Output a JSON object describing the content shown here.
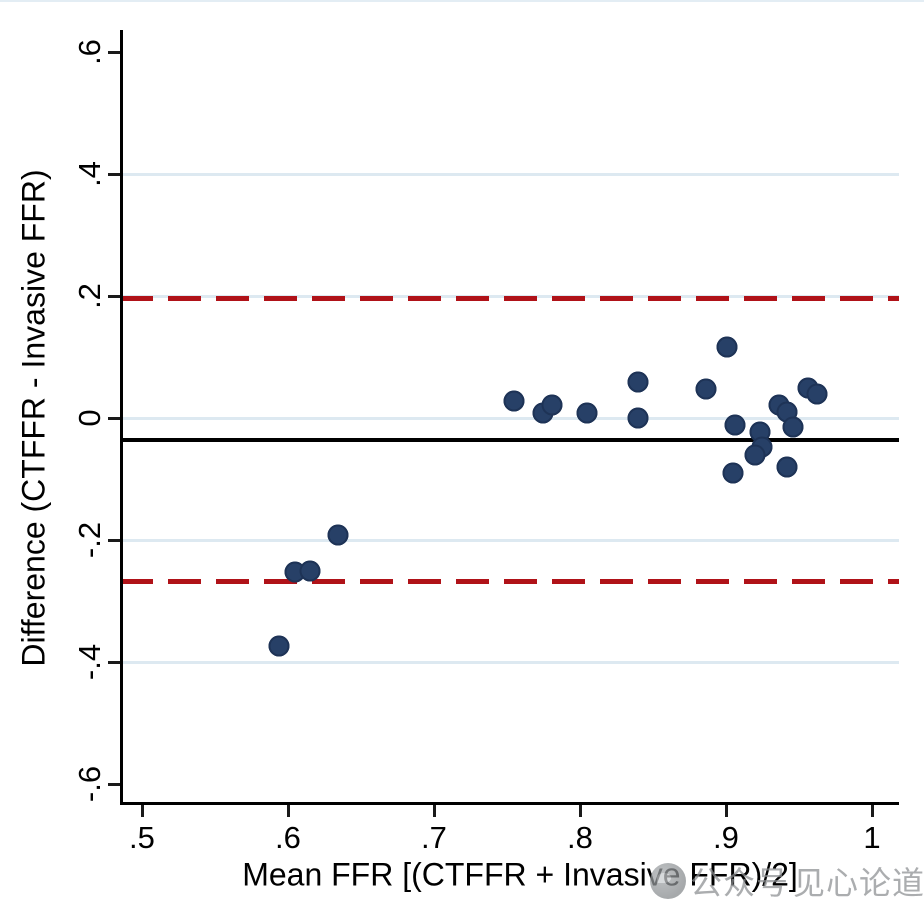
{
  "figure": {
    "watermark": {
      "icon": "wechat-logo-icon",
      "text_prefix": "公众号",
      "text_name": "见心论道"
    }
  },
  "chart_data": {
    "type": "scatter",
    "subtype": "bland-altman",
    "title": "",
    "xlabel": "Mean FFR [(CTFFR + Invasive FFR)/2]",
    "ylabel": "Difference (CTFFR - Invasive FFR)",
    "xlim": [
      0.485,
      1.0185
    ],
    "ylim": [
      -0.634,
      0.636
    ],
    "grid": "horizontal-only",
    "legend": "none",
    "x_ticks": [
      {
        "value": 0.5,
        "label": ".5"
      },
      {
        "value": 0.6,
        "label": ".6"
      },
      {
        "value": 0.7,
        "label": ".7"
      },
      {
        "value": 0.8,
        "label": ".8"
      },
      {
        "value": 0.9,
        "label": ".9"
      },
      {
        "value": 1.0,
        "label": "1"
      }
    ],
    "y_ticks": [
      {
        "value": 0.6,
        "label": ".6"
      },
      {
        "value": 0.4,
        "label": ".4"
      },
      {
        "value": 0.2,
        "label": ".2"
      },
      {
        "value": 0.0,
        "label": "0"
      },
      {
        "value": -0.2,
        "label": "-.2"
      },
      {
        "value": -0.4,
        "label": "-.4"
      },
      {
        "value": -0.6,
        "label": "-.6"
      }
    ],
    "gridline_values": [
      0.4,
      0.2,
      0.0,
      -0.2,
      -0.4
    ],
    "points": [
      {
        "mean": 0.594,
        "diff": -0.374
      },
      {
        "mean": 0.605,
        "diff": -0.252
      },
      {
        "mean": 0.615,
        "diff": -0.251
      },
      {
        "mean": 0.634,
        "diff": -0.192
      },
      {
        "mean": 0.755,
        "diff": 0.028
      },
      {
        "mean": 0.775,
        "diff": 0.008
      },
      {
        "mean": 0.781,
        "diff": 0.021
      },
      {
        "mean": 0.805,
        "diff": 0.008
      },
      {
        "mean": 0.84,
        "diff": 0.059
      },
      {
        "mean": 0.84,
        "diff": 0.0
      },
      {
        "mean": 0.886,
        "diff": 0.048
      },
      {
        "mean": 0.901,
        "diff": 0.116
      },
      {
        "mean": 0.906,
        "diff": -0.011
      },
      {
        "mean": 0.905,
        "diff": -0.09
      },
      {
        "mean": 0.923,
        "diff": -0.023
      },
      {
        "mean": 0.925,
        "diff": -0.048
      },
      {
        "mean": 0.92,
        "diff": -0.061
      },
      {
        "mean": 0.936,
        "diff": 0.021
      },
      {
        "mean": 0.942,
        "diff": 0.01
      },
      {
        "mean": 0.946,
        "diff": -0.015
      },
      {
        "mean": 0.942,
        "diff": -0.08
      },
      {
        "mean": 0.956,
        "diff": 0.049
      },
      {
        "mean": 0.962,
        "diff": 0.039
      }
    ],
    "reference_lines": {
      "mean_difference": {
        "value": -0.036,
        "style": "solid",
        "color": "#000000"
      },
      "upper_loa": {
        "value": 0.197,
        "style": "dashed",
        "color": "#b01218"
      },
      "lower_loa": {
        "value": -0.267,
        "style": "dashed",
        "color": "#b01218"
      }
    },
    "colors": {
      "point": "#274067",
      "gridline": "#dde9f1",
      "loa_line": "#b01218",
      "mean_line": "#000000",
      "watermark_gray": "#8b8e91",
      "background": "#ffffff"
    }
  }
}
